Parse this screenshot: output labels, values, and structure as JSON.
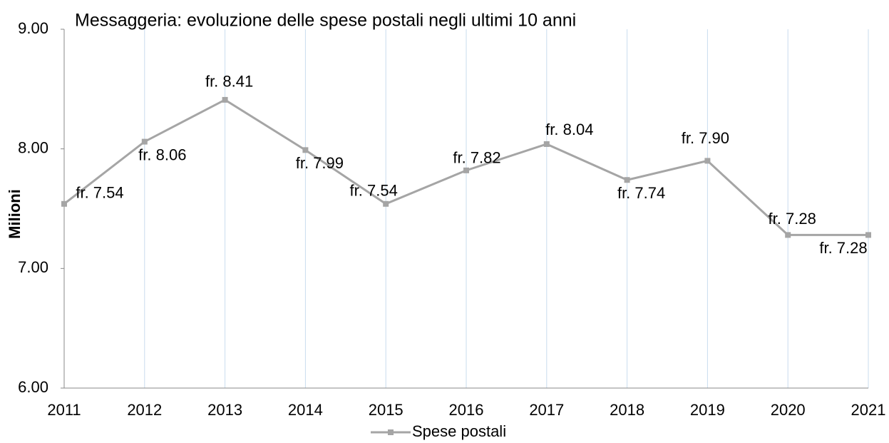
{
  "chart_data": {
    "type": "line",
    "title": "Messaggeria: evoluzione delle spese postali negli ultimi 10 anni",
    "y_label": "Milioni",
    "categories": [
      "2011",
      "2012",
      "2013",
      "2014",
      "2015",
      "2016",
      "2017",
      "2018",
      "2019",
      "2020",
      "2021"
    ],
    "series": [
      {
        "name": "Spese postali",
        "color": "#a5a5a5",
        "values": [
          7.54,
          8.06,
          8.41,
          7.99,
          7.54,
          7.82,
          8.04,
          7.74,
          7.9,
          7.28,
          7.28
        ],
        "value_labels": [
          "fr. 7.54",
          "fr. 8.06",
          "fr. 8.41",
          "fr. 7.99",
          "fr. 7.54",
          "fr. 7.82",
          "fr. 8.04",
          "fr. 7.74",
          "fr. 7.90",
          "fr. 7.28",
          "fr. 7.28"
        ]
      }
    ],
    "ylim": [
      6,
      9
    ],
    "yticks": [
      {
        "value": 6,
        "label": "6.00"
      },
      {
        "value": 7,
        "label": "7.00"
      },
      {
        "value": 8,
        "label": "8.00"
      },
      {
        "value": 9,
        "label": "9.00"
      }
    ],
    "grid": "x",
    "legend": "bottom"
  }
}
